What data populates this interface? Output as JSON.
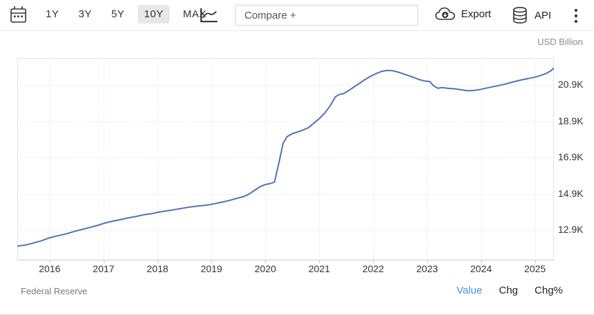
{
  "toolbar": {
    "range_buttons": [
      {
        "label": "1Y",
        "selected": false
      },
      {
        "label": "3Y",
        "selected": false
      },
      {
        "label": "5Y",
        "selected": false
      },
      {
        "label": "10Y",
        "selected": true
      },
      {
        "label": "MAX",
        "selected": false
      }
    ],
    "compare_placeholder": "Compare +",
    "export_label": "Export",
    "api_label": "API",
    "icons": [
      "calendar-icon",
      "line-chart-icon",
      "cloud-download-icon",
      "database-icon",
      "kebab-menu-icon"
    ]
  },
  "chart": {
    "unit_label": "USD Billion"
  },
  "footer": {
    "source": "Federal Reserve",
    "links": [
      {
        "label": "Value",
        "active": true
      },
      {
        "label": "Chg",
        "active": false
      },
      {
        "label": "Chg%",
        "active": false
      }
    ]
  },
  "colors": {
    "line": "#4e73b4",
    "active_link": "#4a8fe0",
    "grid": "#dcdcdc",
    "axis": "#c9c9c9",
    "selected_range_bg": "#e8e8e8"
  },
  "chart_data": {
    "type": "line",
    "title": "",
    "ylabel": "USD Billion",
    "source": "Federal Reserve",
    "legend": "none",
    "grid": "dotted",
    "x_range": [
      2015.4,
      2025.35
    ],
    "y_range": [
      11242,
      22383
    ],
    "x_ticks": [
      2016,
      2017,
      2018,
      2019,
      2020,
      2021,
      2022,
      2023,
      2024,
      2025
    ],
    "y_ticks": [
      {
        "value": 20900,
        "label": "20.9K"
      },
      {
        "value": 18900,
        "label": "18.9K"
      },
      {
        "value": 16900,
        "label": "16.9K"
      },
      {
        "value": 14900,
        "label": "14.9K"
      },
      {
        "value": 12900,
        "label": "12.9K"
      }
    ],
    "series": [
      {
        "name": "Value",
        "color": "#4e73b4",
        "points": [
          [
            2015.4,
            12030
          ],
          [
            2015.55,
            12090
          ],
          [
            2015.7,
            12200
          ],
          [
            2015.85,
            12330
          ],
          [
            2016.0,
            12490
          ],
          [
            2016.15,
            12600
          ],
          [
            2016.3,
            12700
          ],
          [
            2016.45,
            12830
          ],
          [
            2016.6,
            12950
          ],
          [
            2016.75,
            13060
          ],
          [
            2016.9,
            13180
          ],
          [
            2017.0,
            13280
          ],
          [
            2017.15,
            13390
          ],
          [
            2017.3,
            13480
          ],
          [
            2017.45,
            13580
          ],
          [
            2017.6,
            13660
          ],
          [
            2017.75,
            13760
          ],
          [
            2017.9,
            13820
          ],
          [
            2018.0,
            13890
          ],
          [
            2018.15,
            13960
          ],
          [
            2018.3,
            14030
          ],
          [
            2018.45,
            14110
          ],
          [
            2018.6,
            14180
          ],
          [
            2018.75,
            14240
          ],
          [
            2018.9,
            14280
          ],
          [
            2019.0,
            14330
          ],
          [
            2019.15,
            14420
          ],
          [
            2019.3,
            14520
          ],
          [
            2019.45,
            14640
          ],
          [
            2019.6,
            14760
          ],
          [
            2019.7,
            14900
          ],
          [
            2019.8,
            15100
          ],
          [
            2019.9,
            15300
          ],
          [
            2020.0,
            15420
          ],
          [
            2020.1,
            15480
          ],
          [
            2020.17,
            15560
          ],
          [
            2020.25,
            16600
          ],
          [
            2020.33,
            17700
          ],
          [
            2020.4,
            18050
          ],
          [
            2020.5,
            18220
          ],
          [
            2020.6,
            18320
          ],
          [
            2020.7,
            18420
          ],
          [
            2020.8,
            18550
          ],
          [
            2020.9,
            18800
          ],
          [
            2021.0,
            19050
          ],
          [
            2021.1,
            19350
          ],
          [
            2021.2,
            19750
          ],
          [
            2021.3,
            20250
          ],
          [
            2021.37,
            20380
          ],
          [
            2021.45,
            20420
          ],
          [
            2021.55,
            20600
          ],
          [
            2021.65,
            20800
          ],
          [
            2021.75,
            21000
          ],
          [
            2021.85,
            21200
          ],
          [
            2021.95,
            21380
          ],
          [
            2022.05,
            21520
          ],
          [
            2022.15,
            21640
          ],
          [
            2022.25,
            21700
          ],
          [
            2022.35,
            21690
          ],
          [
            2022.45,
            21620
          ],
          [
            2022.55,
            21520
          ],
          [
            2022.65,
            21420
          ],
          [
            2022.75,
            21310
          ],
          [
            2022.85,
            21200
          ],
          [
            2022.95,
            21120
          ],
          [
            2023.05,
            21090
          ],
          [
            2023.12,
            20850
          ],
          [
            2023.2,
            20720
          ],
          [
            2023.28,
            20760
          ],
          [
            2023.38,
            20720
          ],
          [
            2023.5,
            20690
          ],
          [
            2023.62,
            20640
          ],
          [
            2023.75,
            20580
          ],
          [
            2023.88,
            20600
          ],
          [
            2024.0,
            20660
          ],
          [
            2024.15,
            20760
          ],
          [
            2024.3,
            20850
          ],
          [
            2024.45,
            20950
          ],
          [
            2024.6,
            21070
          ],
          [
            2024.75,
            21180
          ],
          [
            2024.9,
            21270
          ],
          [
            2025.0,
            21330
          ],
          [
            2025.1,
            21420
          ],
          [
            2025.2,
            21520
          ],
          [
            2025.28,
            21650
          ],
          [
            2025.35,
            21820
          ]
        ]
      }
    ]
  }
}
